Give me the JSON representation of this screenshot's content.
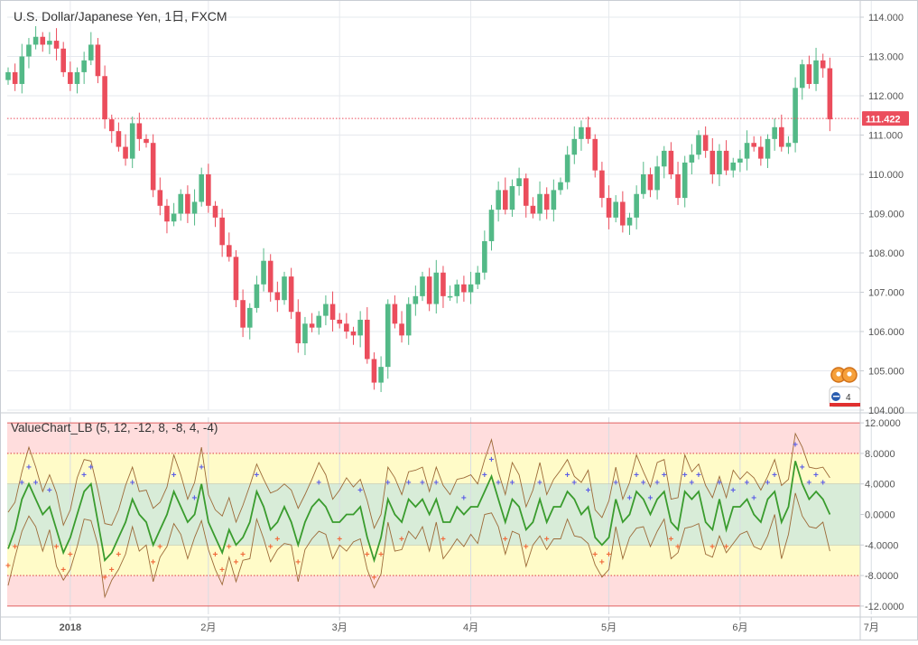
{
  "main_title": "U.S. Dollar/Japanese Yen, 1日, FXCM",
  "indicator_title": "ValueChart_LB (5, 12, -12, 8, -8, 4, -4)",
  "last_price_label": "111.422",
  "widget_badge": "4",
  "colors": {
    "up": "#53b987",
    "down": "#eb4d5c",
    "price_line": "#eb4d5c",
    "zone_extreme": "#ffdddd",
    "zone_warning": "#fffbc8",
    "zone_neutral": "#d8ecd8",
    "value_line": "#3a9c2e",
    "band_line": "#9c6a38",
    "marker_up": "#5b5ee6",
    "marker_down": "#f06a3a",
    "level_line": "#e06060",
    "grid": "#e6e9ee"
  },
  "chart_data": [
    {
      "type": "candlestick",
      "title": "U.S. Dollar/Japanese Yen, 1日, FXCM",
      "y_axis_ticks": [
        "114.000",
        "113.000",
        "112.000",
        "111.000",
        "110.000",
        "109.000",
        "108.000",
        "107.000",
        "106.000",
        "105.000",
        "104.000"
      ],
      "x_axis_ticks": [
        {
          "label": "2018",
          "index": 9
        },
        {
          "label": "2月",
          "index": 29
        },
        {
          "label": "3月",
          "index": 48
        },
        {
          "label": "4月",
          "index": 67
        },
        {
          "label": "5月",
          "index": 87
        },
        {
          "label": "6月",
          "index": 106
        },
        {
          "label": "7月",
          "index": 125
        }
      ],
      "ylim": [
        104.0,
        114.0
      ],
      "last_price": 111.422,
      "closes": [
        112.6,
        112.3,
        113.0,
        113.3,
        113.5,
        113.3,
        113.4,
        113.2,
        112.6,
        112.3,
        112.6,
        112.9,
        113.3,
        112.5,
        111.4,
        111.1,
        110.7,
        110.4,
        111.3,
        110.9,
        110.8,
        109.6,
        109.2,
        108.8,
        109.0,
        109.5,
        109.0,
        109.3,
        110.0,
        109.2,
        108.9,
        108.2,
        107.9,
        106.8,
        106.1,
        106.6,
        107.2,
        107.8,
        107.0,
        106.8,
        107.4,
        106.5,
        105.7,
        106.2,
        106.1,
        106.4,
        106.7,
        106.3,
        106.2,
        106.0,
        105.9,
        106.3,
        105.3,
        104.7,
        105.1,
        106.7,
        106.2,
        105.9,
        106.7,
        106.9,
        107.4,
        106.7,
        107.5,
        106.9,
        106.9,
        107.2,
        107.0,
        107.2,
        107.5,
        108.3,
        109.1,
        109.6,
        109.1,
        109.7,
        109.9,
        109.2,
        109.0,
        109.5,
        109.1,
        109.6,
        109.8,
        110.5,
        110.9,
        111.2,
        110.9,
        110.1,
        109.4,
        108.9,
        109.3,
        108.7,
        108.9,
        109.5,
        110.0,
        109.6,
        110.2,
        110.6,
        110.0,
        109.4,
        110.3,
        110.5,
        111.0,
        110.6,
        110.0,
        110.6,
        110.1,
        110.3,
        110.4,
        110.8,
        110.7,
        110.4,
        110.9,
        111.2,
        110.7,
        110.8,
        112.2,
        112.8,
        112.3,
        112.9,
        112.7,
        111.4
      ],
      "opens": [
        112.4,
        112.6,
        112.3,
        113.0,
        113.3,
        113.5,
        113.3,
        113.4,
        113.2,
        112.6,
        112.3,
        112.6,
        112.9,
        113.3,
        112.5,
        111.4,
        111.1,
        110.7,
        110.4,
        111.3,
        110.9,
        110.8,
        109.6,
        109.2,
        108.8,
        109.0,
        109.5,
        109.0,
        109.3,
        110.0,
        109.2,
        108.9,
        108.2,
        107.9,
        106.8,
        106.1,
        106.6,
        107.2,
        107.8,
        107.0,
        106.8,
        107.4,
        106.5,
        105.7,
        106.2,
        106.1,
        106.4,
        106.7,
        106.3,
        106.2,
        106.0,
        105.9,
        106.3,
        105.3,
        104.7,
        105.1,
        106.7,
        106.2,
        105.9,
        106.7,
        106.9,
        107.4,
        106.7,
        107.5,
        106.9,
        106.9,
        107.2,
        107.0,
        107.2,
        107.5,
        108.3,
        109.1,
        109.6,
        109.1,
        109.7,
        109.9,
        109.2,
        109.0,
        109.5,
        109.1,
        109.6,
        109.8,
        110.5,
        110.9,
        111.2,
        110.9,
        110.1,
        109.4,
        108.9,
        109.3,
        108.7,
        108.9,
        109.5,
        110.0,
        109.6,
        110.2,
        110.6,
        110.0,
        109.4,
        110.3,
        110.5,
        111.0,
        110.6,
        110.0,
        110.6,
        110.1,
        110.3,
        110.4,
        110.8,
        110.7,
        110.4,
        110.9,
        111.2,
        110.7,
        110.8,
        112.2,
        112.8,
        112.3,
        112.9,
        112.7
      ]
    },
    {
      "type": "line",
      "title": "ValueChart_LB (5, 12, -12, 8, -8, 4, -4)",
      "y_axis_ticks": [
        "12.0000",
        "8.0000",
        "4.0000",
        "0.0000",
        "-4.0000",
        "-8.0000",
        "-12.0000"
      ],
      "ylim": [
        -12.0,
        12.0
      ],
      "levels": {
        "extreme": [
          12,
          -12
        ],
        "warning": [
          8,
          -8
        ],
        "neutral": [
          4,
          -4
        ]
      },
      "series": [
        {
          "values": [
            -4.5,
            -2,
            2,
            4,
            2,
            0,
            1,
            -2,
            -5,
            -3,
            0,
            3,
            4,
            -1,
            -6,
            -5,
            -3,
            -1,
            2,
            0,
            -1,
            -4,
            -2,
            0,
            3,
            1,
            -1,
            0,
            4,
            -1,
            -3,
            -5,
            -2,
            -4,
            -3,
            -1,
            3,
            1,
            -2,
            -1,
            1,
            -1,
            -4,
            -1,
            1,
            2,
            1,
            -1,
            -1,
            0,
            0,
            1,
            -3,
            -6,
            -3,
            2,
            0,
            -1,
            2,
            1,
            2,
            0,
            2,
            -1,
            -1,
            1,
            0,
            1,
            1,
            3,
            5,
            2,
            -1,
            2,
            1,
            -2,
            -1,
            2,
            -1,
            1,
            1,
            3,
            2,
            0,
            1,
            -3,
            -4,
            -3,
            2,
            -1,
            0,
            3,
            2,
            0,
            2,
            3,
            -1,
            -2,
            3,
            2,
            3,
            -1,
            -2,
            2,
            -2,
            1,
            1,
            2,
            0,
            -1,
            2,
            3,
            -1,
            1,
            7,
            4,
            2,
            3,
            2,
            0
          ]
        }
      ]
    }
  ]
}
